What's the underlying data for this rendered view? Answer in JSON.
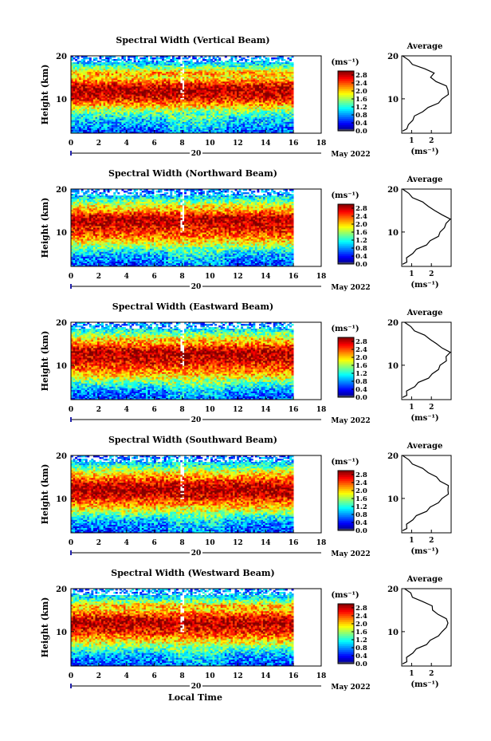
{
  "chart_data": [
    {
      "type": "heatmap",
      "title": "Spectral Width (Vertical Beam)",
      "ylabel": "Height (km)",
      "x_ticks": [
        "0",
        "2",
        "4",
        "6",
        "8",
        "10",
        "12",
        "14",
        "16",
        "18"
      ],
      "xlim": [
        0,
        18
      ],
      "ylim": [
        2,
        20
      ],
      "y_ticks": [
        "20",
        "10"
      ],
      "date_day": "20",
      "date_month": "May 2022",
      "colorbar": {
        "unit": "(ms⁻¹)",
        "ticks": [
          "2.8",
          "2.4",
          "2.0",
          "1.6",
          "1.2",
          "0.8",
          "0.4",
          "0.0"
        ],
        "range": [
          0,
          3.0
        ]
      },
      "profile": {
        "title": "Average",
        "xlabel": "(ms⁻¹)",
        "x_ticks": [
          "1",
          "2"
        ],
        "xlim": [
          0.5,
          3.0
        ],
        "heights": [
          2.5,
          3,
          4,
          5,
          6,
          7,
          8,
          9,
          10,
          11,
          12,
          13,
          14,
          15,
          16,
          17,
          18,
          19,
          20
        ],
        "values": [
          0.6,
          0.7,
          0.9,
          1.0,
          1.2,
          1.5,
          1.9,
          2.3,
          2.6,
          2.8,
          2.9,
          2.7,
          2.3,
          1.9,
          2.2,
          1.6,
          1.1,
          0.8,
          0.6
        ]
      }
    },
    {
      "type": "heatmap",
      "title": "Spectral Width (Northward Beam)",
      "ylabel": "Height (km)",
      "x_ticks": [
        "0",
        "2",
        "4",
        "6",
        "8",
        "10",
        "12",
        "14",
        "16",
        "18"
      ],
      "xlim": [
        0,
        18
      ],
      "ylim": [
        2,
        20
      ],
      "y_ticks": [
        "20",
        "10"
      ],
      "date_day": "20",
      "date_month": "May 2022",
      "colorbar": {
        "unit": "(ms⁻¹)",
        "ticks": [
          "2.8",
          "2.4",
          "2.0",
          "1.6",
          "1.2",
          "0.8",
          "0.4",
          "0.0"
        ],
        "range": [
          0,
          3.0
        ]
      },
      "profile": {
        "title": "Average",
        "xlabel": "(ms⁻¹)",
        "x_ticks": [
          "1",
          "2"
        ],
        "xlim": [
          0.5,
          3.0
        ],
        "heights": [
          2.5,
          3,
          4,
          5,
          6,
          7,
          8,
          9,
          10,
          11,
          12,
          13,
          14,
          15,
          16,
          17,
          18,
          19,
          20
        ],
        "values": [
          0.6,
          0.7,
          0.8,
          1.0,
          1.3,
          1.7,
          2.0,
          2.3,
          2.5,
          2.6,
          2.8,
          2.9,
          2.6,
          2.1,
          1.9,
          1.5,
          1.1,
          0.8,
          0.6
        ]
      }
    },
    {
      "type": "heatmap",
      "title": "Spectral Width (Eastward Beam)",
      "ylabel": "Height (km)",
      "x_ticks": [
        "0",
        "2",
        "4",
        "6",
        "8",
        "10",
        "12",
        "14",
        "16",
        "18"
      ],
      "xlim": [
        0,
        18
      ],
      "ylim": [
        2,
        20
      ],
      "y_ticks": [
        "20",
        "10"
      ],
      "date_day": "20",
      "date_month": "May 2022",
      "colorbar": {
        "unit": "(ms⁻¹)",
        "ticks": [
          "2.8",
          "2.4",
          "2.0",
          "1.6",
          "1.2",
          "0.8",
          "0.4",
          "0.0"
        ],
        "range": [
          0,
          3.0
        ]
      },
      "profile": {
        "title": "Average",
        "xlabel": "(ms⁻¹)",
        "x_ticks": [
          "1",
          "2"
        ],
        "xlim": [
          0.5,
          3.0
        ],
        "heights": [
          2.5,
          3,
          4,
          5,
          6,
          7,
          8,
          9,
          10,
          11,
          12,
          13,
          14,
          15,
          16,
          17,
          18,
          19,
          20
        ],
        "values": [
          0.6,
          0.7,
          0.8,
          1.1,
          1.4,
          1.8,
          2.1,
          2.3,
          2.5,
          2.7,
          2.8,
          2.9,
          2.6,
          2.2,
          2.0,
          1.6,
          1.2,
          0.9,
          0.7
        ]
      }
    },
    {
      "type": "heatmap",
      "title": "Spectral Width (Southward Beam)",
      "ylabel": "Height (km)",
      "x_ticks": [
        "0",
        "2",
        "4",
        "6",
        "8",
        "10",
        "12",
        "14",
        "16",
        "18"
      ],
      "xlim": [
        0,
        18
      ],
      "ylim": [
        2,
        20
      ],
      "y_ticks": [
        "20",
        "10"
      ],
      "date_day": "20",
      "date_month": "May 2022",
      "colorbar": {
        "unit": "(ms⁻¹)",
        "ticks": [
          "2.8",
          "2.4",
          "2.0",
          "1.6",
          "1.2",
          "0.8",
          "0.4",
          "0.0"
        ],
        "range": [
          0,
          3.0
        ]
      },
      "profile": {
        "title": "Average",
        "xlabel": "(ms⁻¹)",
        "x_ticks": [
          "1",
          "2"
        ],
        "xlim": [
          0.5,
          3.0
        ],
        "heights": [
          2.5,
          3,
          4,
          5,
          6,
          7,
          8,
          9,
          10,
          11,
          12,
          13,
          14,
          15,
          16,
          17,
          18,
          19,
          20
        ],
        "values": [
          0.6,
          0.7,
          0.8,
          1.0,
          1.3,
          1.7,
          2.0,
          2.3,
          2.6,
          2.8,
          2.9,
          2.8,
          2.5,
          2.2,
          1.9,
          1.5,
          1.1,
          0.8,
          0.6
        ]
      }
    },
    {
      "type": "heatmap",
      "title": "Spectral Width (Westward Beam)",
      "ylabel": "Height (km)",
      "x_ticks": [
        "0",
        "2",
        "4",
        "6",
        "8",
        "10",
        "12",
        "14",
        "16",
        "18"
      ],
      "xlim": [
        0,
        18
      ],
      "ylim": [
        2,
        20
      ],
      "y_ticks": [
        "20",
        "10"
      ],
      "date_day": "20",
      "date_month": "May 2022",
      "colorbar": {
        "unit": "(ms⁻¹)",
        "ticks": [
          "2.8",
          "2.4",
          "2.0",
          "1.6",
          "1.2",
          "0.8",
          "0.4",
          "0.0"
        ],
        "range": [
          0,
          3.0
        ]
      },
      "profile": {
        "title": "Average",
        "xlabel": "(ms⁻¹)",
        "x_ticks": [
          "1",
          "2"
        ],
        "xlim": [
          0.5,
          3.0
        ],
        "heights": [
          2.5,
          3,
          4,
          5,
          6,
          7,
          8,
          9,
          10,
          11,
          12,
          13,
          14,
          15,
          16,
          17,
          18,
          19,
          20
        ],
        "values": [
          0.6,
          0.7,
          0.8,
          1.0,
          1.3,
          1.7,
          2.0,
          2.3,
          2.6,
          2.7,
          2.9,
          2.7,
          2.4,
          2.0,
          2.1,
          1.5,
          1.1,
          0.9,
          0.7
        ]
      }
    }
  ],
  "footer": {
    "xlabel": "Local Time"
  }
}
